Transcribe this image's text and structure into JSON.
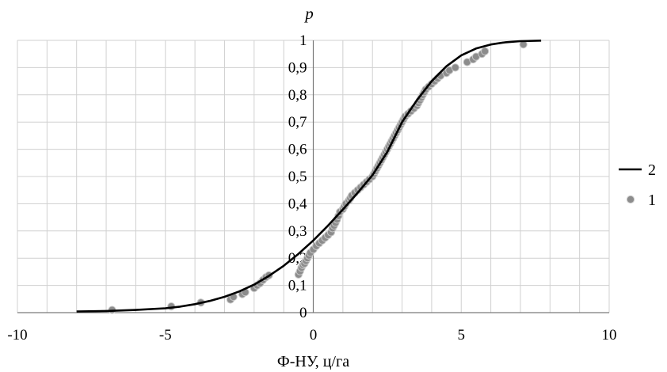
{
  "chart_data": {
    "type": "scatter",
    "xlabel": "Ф-НУ, ц/га",
    "ylabel": "p",
    "xlim": [
      -10,
      10
    ],
    "ylim": [
      0,
      1
    ],
    "x_ticks": [
      "-10",
      "-5",
      "0",
      "5",
      "10"
    ],
    "y_ticks": [
      "0",
      "0,1",
      "0,2",
      "0,3",
      "0,4",
      "0,5",
      "0,6",
      "0,7",
      "0,8",
      "0,9",
      "1"
    ],
    "grid": true,
    "legend_position": "right",
    "colors": {
      "line": "#000000",
      "points": "#8c8c8c",
      "grid": "#d0d0d0"
    },
    "series": [
      {
        "name": "2",
        "kind": "line",
        "points": [
          [
            -8,
            0.004
          ],
          [
            -7,
            0.006
          ],
          [
            -6,
            0.01
          ],
          [
            -5,
            0.016
          ],
          [
            -4.5,
            0.022
          ],
          [
            -4,
            0.031
          ],
          [
            -3.5,
            0.043
          ],
          [
            -3,
            0.058
          ],
          [
            -2.5,
            0.078
          ],
          [
            -2,
            0.103
          ],
          [
            -1.5,
            0.135
          ],
          [
            -1,
            0.172
          ],
          [
            -0.5,
            0.216
          ],
          [
            0,
            0.265
          ],
          [
            0.5,
            0.32
          ],
          [
            1,
            0.379
          ],
          [
            1.5,
            0.44
          ],
          [
            2,
            0.505
          ],
          [
            2.5,
            0.59
          ],
          [
            3,
            0.7
          ],
          [
            3.5,
            0.78
          ],
          [
            4,
            0.85
          ],
          [
            4.5,
            0.905
          ],
          [
            5,
            0.945
          ],
          [
            5.5,
            0.97
          ],
          [
            6,
            0.985
          ],
          [
            6.5,
            0.993
          ],
          [
            7,
            0.997
          ],
          [
            7.7,
            0.999
          ]
        ]
      },
      {
        "name": "1",
        "kind": "scatter",
        "points": [
          [
            -6.8,
            0.01
          ],
          [
            -4.8,
            0.023
          ],
          [
            -3.8,
            0.037
          ],
          [
            -2.8,
            0.048
          ],
          [
            -2.7,
            0.058
          ],
          [
            -2.4,
            0.068
          ],
          [
            -2.3,
            0.075
          ],
          [
            -2.0,
            0.09
          ],
          [
            -1.9,
            0.1
          ],
          [
            -1.8,
            0.108
          ],
          [
            -1.7,
            0.12
          ],
          [
            -1.6,
            0.13
          ],
          [
            -1.5,
            0.137
          ],
          [
            -0.5,
            0.14
          ],
          [
            -0.45,
            0.152
          ],
          [
            -0.4,
            0.165
          ],
          [
            -0.35,
            0.175
          ],
          [
            -0.3,
            0.18
          ],
          [
            -0.25,
            0.19
          ],
          [
            -0.2,
            0.2
          ],
          [
            -0.15,
            0.21
          ],
          [
            -0.1,
            0.22
          ],
          [
            0.0,
            0.232
          ],
          [
            0.1,
            0.245
          ],
          [
            0.2,
            0.255
          ],
          [
            0.3,
            0.265
          ],
          [
            0.4,
            0.275
          ],
          [
            0.5,
            0.285
          ],
          [
            0.6,
            0.295
          ],
          [
            0.65,
            0.31
          ],
          [
            0.7,
            0.32
          ],
          [
            0.75,
            0.33
          ],
          [
            0.8,
            0.342
          ],
          [
            0.85,
            0.355
          ],
          [
            0.9,
            0.37
          ],
          [
            1.0,
            0.38
          ],
          [
            1.05,
            0.39
          ],
          [
            1.1,
            0.4
          ],
          [
            1.2,
            0.412
          ],
          [
            1.25,
            0.42
          ],
          [
            1.3,
            0.43
          ],
          [
            1.4,
            0.44
          ],
          [
            1.5,
            0.45
          ],
          [
            1.6,
            0.46
          ],
          [
            1.7,
            0.47
          ],
          [
            1.8,
            0.48
          ],
          [
            1.9,
            0.49
          ],
          [
            2.0,
            0.5
          ],
          [
            2.05,
            0.51
          ],
          [
            2.1,
            0.52
          ],
          [
            2.15,
            0.53
          ],
          [
            2.2,
            0.54
          ],
          [
            2.25,
            0.55
          ],
          [
            2.3,
            0.56
          ],
          [
            2.35,
            0.57
          ],
          [
            2.4,
            0.58
          ],
          [
            2.45,
            0.59
          ],
          [
            2.5,
            0.6
          ],
          [
            2.55,
            0.61
          ],
          [
            2.6,
            0.62
          ],
          [
            2.65,
            0.63
          ],
          [
            2.7,
            0.64
          ],
          [
            2.75,
            0.65
          ],
          [
            2.8,
            0.66
          ],
          [
            2.85,
            0.67
          ],
          [
            2.9,
            0.68
          ],
          [
            2.95,
            0.69
          ],
          [
            3.0,
            0.7
          ],
          [
            3.05,
            0.71
          ],
          [
            3.1,
            0.72
          ],
          [
            3.2,
            0.73
          ],
          [
            3.3,
            0.74
          ],
          [
            3.4,
            0.75
          ],
          [
            3.5,
            0.76
          ],
          [
            3.55,
            0.77
          ],
          [
            3.6,
            0.78
          ],
          [
            3.65,
            0.79
          ],
          [
            3.7,
            0.8
          ],
          [
            3.75,
            0.81
          ],
          [
            3.8,
            0.82
          ],
          [
            3.9,
            0.83
          ],
          [
            4.0,
            0.84
          ],
          [
            4.1,
            0.85
          ],
          [
            4.2,
            0.86
          ],
          [
            4.3,
            0.87
          ],
          [
            4.5,
            0.88
          ],
          [
            4.6,
            0.89
          ],
          [
            4.8,
            0.9
          ],
          [
            5.2,
            0.92
          ],
          [
            5.4,
            0.93
          ],
          [
            5.5,
            0.94
          ],
          [
            5.7,
            0.95
          ],
          [
            5.8,
            0.96
          ],
          [
            7.1,
            0.985
          ]
        ]
      }
    ]
  }
}
